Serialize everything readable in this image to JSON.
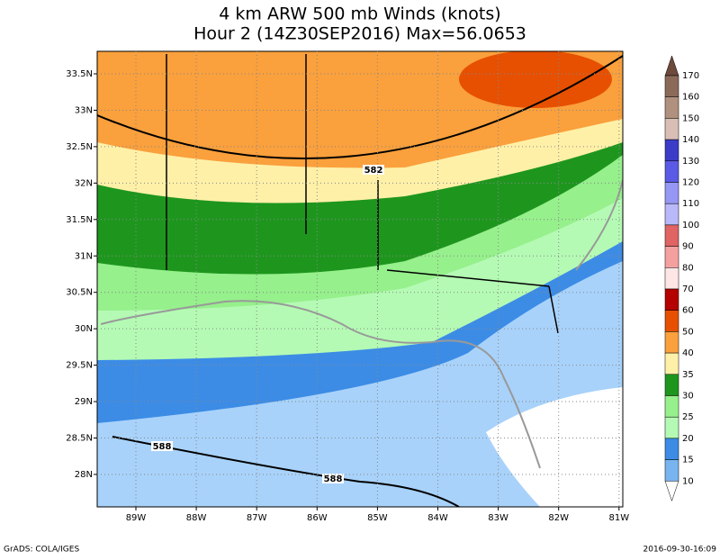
{
  "title": {
    "line1": "4 km ARW 500 mb Winds (knots)",
    "line2": "Hour 2 (14Z30SEP2016) Max=56.0653"
  },
  "lat_labels": [
    "33.5N",
    "33N",
    "32.5N",
    "32N",
    "31.5N",
    "31N",
    "30.5N",
    "30N",
    "29.5N",
    "29N",
    "28.5N",
    "28N"
  ],
  "lon_labels": [
    "89W",
    "88W",
    "87W",
    "86W",
    "85W",
    "84W",
    "83W",
    "82W",
    "81W"
  ],
  "colorbar": {
    "labels": [
      "170",
      "160",
      "150",
      "140",
      "130",
      "120",
      "110",
      "100",
      "90",
      "80",
      "70",
      "60",
      "50",
      "40",
      "35",
      "30",
      "25",
      "20",
      "15",
      "10"
    ],
    "colors": [
      "#6e4a3c",
      "#8c6a5a",
      "#b0907e",
      "#d8beb4",
      "#3c3cc8",
      "#5a5ae6",
      "#9696f5",
      "#b9b9fa",
      "#e06464",
      "#f5a0a0",
      "#ffe6e6",
      "#b40000",
      "#e65000",
      "#faa03c",
      "#fff0a8",
      "#1e961e",
      "#96f08c",
      "#b4fab4",
      "#3c8ce6",
      "#78b4f0",
      "#a8d2fa",
      "#ffffff"
    ]
  },
  "contour_labels": [
    "582",
    "588",
    "588"
  ],
  "footer": {
    "left": "GrADS: COLA/IGES",
    "right": "2016-09-30-16:09"
  }
}
